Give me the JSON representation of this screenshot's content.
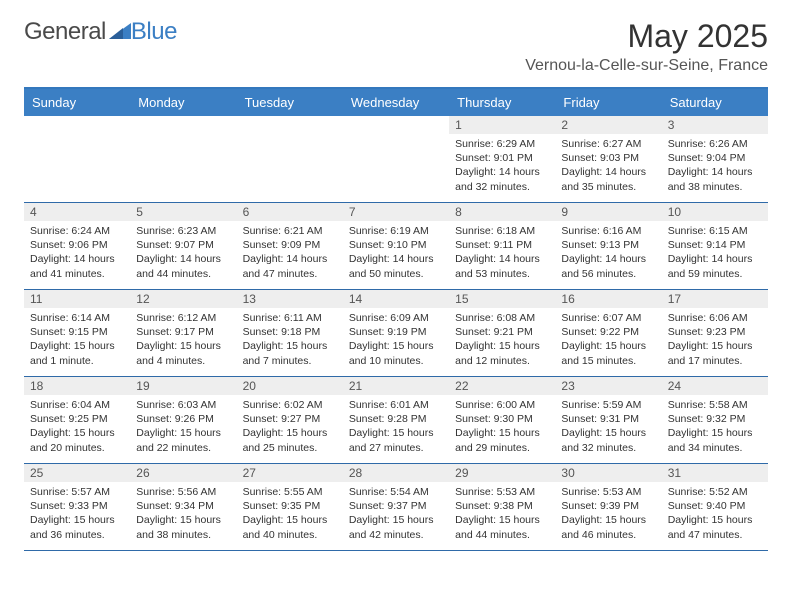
{
  "logo": {
    "general": "General",
    "blue": "Blue"
  },
  "title": "May 2025",
  "location": "Vernou-la-Celle-sur-Seine, France",
  "colors": {
    "header_bg": "#3b7fc4",
    "header_border": "#3478bd",
    "row_border": "#2f6aa8",
    "daynum_bg": "#eeeeee",
    "logo_blue": "#3b7fc4",
    "logo_gray": "#4a4a4a"
  },
  "day_headers": [
    "Sunday",
    "Monday",
    "Tuesday",
    "Wednesday",
    "Thursday",
    "Friday",
    "Saturday"
  ],
  "weeks": [
    [
      {
        "n": "",
        "sr": "",
        "ss": "",
        "dl": ""
      },
      {
        "n": "",
        "sr": "",
        "ss": "",
        "dl": ""
      },
      {
        "n": "",
        "sr": "",
        "ss": "",
        "dl": ""
      },
      {
        "n": "",
        "sr": "",
        "ss": "",
        "dl": ""
      },
      {
        "n": "1",
        "sr": "Sunrise: 6:29 AM",
        "ss": "Sunset: 9:01 PM",
        "dl": "Daylight: 14 hours and 32 minutes."
      },
      {
        "n": "2",
        "sr": "Sunrise: 6:27 AM",
        "ss": "Sunset: 9:03 PM",
        "dl": "Daylight: 14 hours and 35 minutes."
      },
      {
        "n": "3",
        "sr": "Sunrise: 6:26 AM",
        "ss": "Sunset: 9:04 PM",
        "dl": "Daylight: 14 hours and 38 minutes."
      }
    ],
    [
      {
        "n": "4",
        "sr": "Sunrise: 6:24 AM",
        "ss": "Sunset: 9:06 PM",
        "dl": "Daylight: 14 hours and 41 minutes."
      },
      {
        "n": "5",
        "sr": "Sunrise: 6:23 AM",
        "ss": "Sunset: 9:07 PM",
        "dl": "Daylight: 14 hours and 44 minutes."
      },
      {
        "n": "6",
        "sr": "Sunrise: 6:21 AM",
        "ss": "Sunset: 9:09 PM",
        "dl": "Daylight: 14 hours and 47 minutes."
      },
      {
        "n": "7",
        "sr": "Sunrise: 6:19 AM",
        "ss": "Sunset: 9:10 PM",
        "dl": "Daylight: 14 hours and 50 minutes."
      },
      {
        "n": "8",
        "sr": "Sunrise: 6:18 AM",
        "ss": "Sunset: 9:11 PM",
        "dl": "Daylight: 14 hours and 53 minutes."
      },
      {
        "n": "9",
        "sr": "Sunrise: 6:16 AM",
        "ss": "Sunset: 9:13 PM",
        "dl": "Daylight: 14 hours and 56 minutes."
      },
      {
        "n": "10",
        "sr": "Sunrise: 6:15 AM",
        "ss": "Sunset: 9:14 PM",
        "dl": "Daylight: 14 hours and 59 minutes."
      }
    ],
    [
      {
        "n": "11",
        "sr": "Sunrise: 6:14 AM",
        "ss": "Sunset: 9:15 PM",
        "dl": "Daylight: 15 hours and 1 minute."
      },
      {
        "n": "12",
        "sr": "Sunrise: 6:12 AM",
        "ss": "Sunset: 9:17 PM",
        "dl": "Daylight: 15 hours and 4 minutes."
      },
      {
        "n": "13",
        "sr": "Sunrise: 6:11 AM",
        "ss": "Sunset: 9:18 PM",
        "dl": "Daylight: 15 hours and 7 minutes."
      },
      {
        "n": "14",
        "sr": "Sunrise: 6:09 AM",
        "ss": "Sunset: 9:19 PM",
        "dl": "Daylight: 15 hours and 10 minutes."
      },
      {
        "n": "15",
        "sr": "Sunrise: 6:08 AM",
        "ss": "Sunset: 9:21 PM",
        "dl": "Daylight: 15 hours and 12 minutes."
      },
      {
        "n": "16",
        "sr": "Sunrise: 6:07 AM",
        "ss": "Sunset: 9:22 PM",
        "dl": "Daylight: 15 hours and 15 minutes."
      },
      {
        "n": "17",
        "sr": "Sunrise: 6:06 AM",
        "ss": "Sunset: 9:23 PM",
        "dl": "Daylight: 15 hours and 17 minutes."
      }
    ],
    [
      {
        "n": "18",
        "sr": "Sunrise: 6:04 AM",
        "ss": "Sunset: 9:25 PM",
        "dl": "Daylight: 15 hours and 20 minutes."
      },
      {
        "n": "19",
        "sr": "Sunrise: 6:03 AM",
        "ss": "Sunset: 9:26 PM",
        "dl": "Daylight: 15 hours and 22 minutes."
      },
      {
        "n": "20",
        "sr": "Sunrise: 6:02 AM",
        "ss": "Sunset: 9:27 PM",
        "dl": "Daylight: 15 hours and 25 minutes."
      },
      {
        "n": "21",
        "sr": "Sunrise: 6:01 AM",
        "ss": "Sunset: 9:28 PM",
        "dl": "Daylight: 15 hours and 27 minutes."
      },
      {
        "n": "22",
        "sr": "Sunrise: 6:00 AM",
        "ss": "Sunset: 9:30 PM",
        "dl": "Daylight: 15 hours and 29 minutes."
      },
      {
        "n": "23",
        "sr": "Sunrise: 5:59 AM",
        "ss": "Sunset: 9:31 PM",
        "dl": "Daylight: 15 hours and 32 minutes."
      },
      {
        "n": "24",
        "sr": "Sunrise: 5:58 AM",
        "ss": "Sunset: 9:32 PM",
        "dl": "Daylight: 15 hours and 34 minutes."
      }
    ],
    [
      {
        "n": "25",
        "sr": "Sunrise: 5:57 AM",
        "ss": "Sunset: 9:33 PM",
        "dl": "Daylight: 15 hours and 36 minutes."
      },
      {
        "n": "26",
        "sr": "Sunrise: 5:56 AM",
        "ss": "Sunset: 9:34 PM",
        "dl": "Daylight: 15 hours and 38 minutes."
      },
      {
        "n": "27",
        "sr": "Sunrise: 5:55 AM",
        "ss": "Sunset: 9:35 PM",
        "dl": "Daylight: 15 hours and 40 minutes."
      },
      {
        "n": "28",
        "sr": "Sunrise: 5:54 AM",
        "ss": "Sunset: 9:37 PM",
        "dl": "Daylight: 15 hours and 42 minutes."
      },
      {
        "n": "29",
        "sr": "Sunrise: 5:53 AM",
        "ss": "Sunset: 9:38 PM",
        "dl": "Daylight: 15 hours and 44 minutes."
      },
      {
        "n": "30",
        "sr": "Sunrise: 5:53 AM",
        "ss": "Sunset: 9:39 PM",
        "dl": "Daylight: 15 hours and 46 minutes."
      },
      {
        "n": "31",
        "sr": "Sunrise: 5:52 AM",
        "ss": "Sunset: 9:40 PM",
        "dl": "Daylight: 15 hours and 47 minutes."
      }
    ]
  ]
}
